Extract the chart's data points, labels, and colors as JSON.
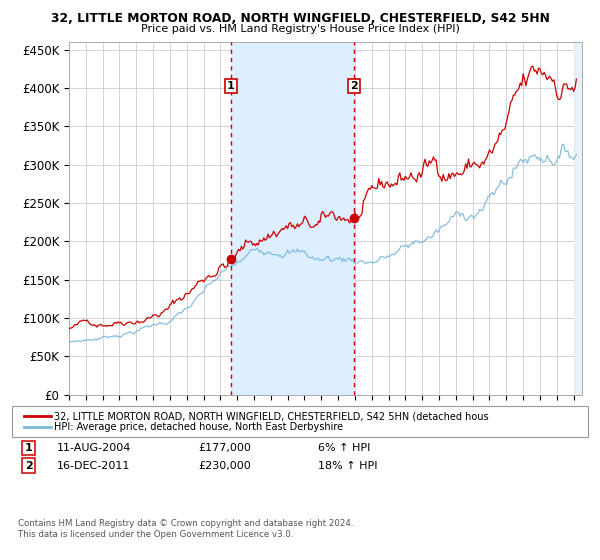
{
  "title1": "32, LITTLE MORTON ROAD, NORTH WINGFIELD, CHESTERFIELD, S42 5HN",
  "title2": "Price paid vs. HM Land Registry's House Price Index (HPI)",
  "xlim_start": 1995.0,
  "xlim_end": 2025.5,
  "ylim_bottom": 0,
  "ylim_top": 460000,
  "sale1_date": 2004.608,
  "sale1_price": 177000,
  "sale1_label": "1",
  "sale2_date": 2011.958,
  "sale2_price": 230000,
  "sale2_label": "2",
  "hpi_line_color": "#7ab8d9",
  "price_line_color": "#cc0000",
  "sale_dot_color": "#cc0000",
  "dashed_line_color": "#cc0000",
  "shaded_color": "#ddeeff",
  "background_color": "#ffffff",
  "grid_color": "#cccccc",
  "legend_text1": "32, LITTLE MORTON ROAD, NORTH WINGFIELD, CHESTERFIELD, S42 5HN (detached hous",
  "legend_text2": "HPI: Average price, detached house, North East Derbyshire",
  "annotation1_date": "11-AUG-2004",
  "annotation1_price": "£177,000",
  "annotation1_hpi": "6% ↑ HPI",
  "annotation2_date": "16-DEC-2011",
  "annotation2_price": "£230,000",
  "annotation2_hpi": "18% ↑ HPI",
  "footer": "Contains HM Land Registry data © Crown copyright and database right 2024.\nThis data is licensed under the Open Government Licence v3.0.",
  "yticks": [
    0,
    50000,
    100000,
    150000,
    200000,
    250000,
    300000,
    350000,
    400000,
    450000
  ],
  "ytick_labels": [
    "£0",
    "£50K",
    "£100K",
    "£150K",
    "£200K",
    "£250K",
    "£300K",
    "£350K",
    "£400K",
    "£450K"
  ],
  "xtick_years": [
    1995,
    1996,
    1997,
    1998,
    1999,
    2000,
    2001,
    2002,
    2003,
    2004,
    2005,
    2006,
    2007,
    2008,
    2009,
    2010,
    2011,
    2012,
    2013,
    2014,
    2015,
    2016,
    2017,
    2018,
    2019,
    2020,
    2021,
    2022,
    2023,
    2024,
    2025
  ]
}
